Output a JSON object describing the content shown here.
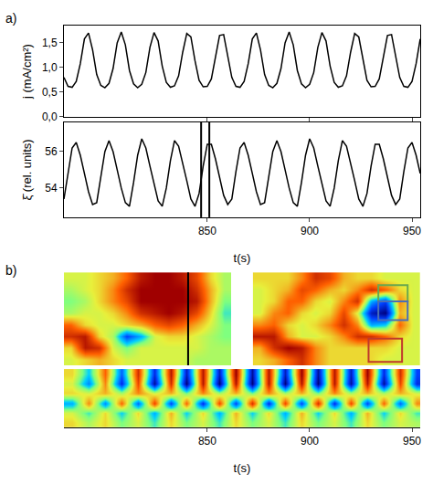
{
  "chart_data": [
    {
      "type": "line",
      "panel_label": "a)",
      "ylabel": "j (mA/cm²)",
      "color": "#000000",
      "tick_labels": "y",
      "x": [
        780,
        782,
        784,
        786,
        788,
        790,
        792,
        794,
        796,
        798,
        800,
        802,
        804,
        806,
        808,
        810,
        812,
        814,
        816,
        818,
        820,
        822,
        824,
        826,
        828,
        830,
        832,
        834,
        836,
        838,
        840,
        842,
        844,
        846,
        848,
        850,
        852,
        854,
        856,
        858,
        860,
        862,
        864,
        866,
        868,
        870,
        872,
        874,
        876,
        878,
        880,
        882,
        884,
        886,
        888,
        890,
        892,
        894,
        896,
        898,
        900,
        902,
        904,
        906,
        908,
        910,
        912,
        914,
        916,
        918,
        920,
        922,
        924,
        926,
        928,
        930,
        932,
        934,
        936,
        938,
        940,
        942,
        944,
        946,
        948,
        950,
        952,
        954
      ],
      "values": [
        0.8,
        0.62,
        0.6,
        0.72,
        1.08,
        1.58,
        1.7,
        1.36,
        0.86,
        0.64,
        0.59,
        0.68,
        0.98,
        1.5,
        1.72,
        1.46,
        0.94,
        0.67,
        0.59,
        0.66,
        0.9,
        1.41,
        1.71,
        1.54,
        1.03,
        0.7,
        0.6,
        0.63,
        0.83,
        1.31,
        1.69,
        1.62,
        1.14,
        0.74,
        0.61,
        0.62,
        0.77,
        1.19,
        1.65,
        1.67,
        1.25,
        0.8,
        0.62,
        0.6,
        0.72,
        1.08,
        1.58,
        1.7,
        1.36,
        0.86,
        0.64,
        0.59,
        0.68,
        0.98,
        1.5,
        1.72,
        1.46,
        0.94,
        0.67,
        0.59,
        0.66,
        0.9,
        1.41,
        1.71,
        1.54,
        1.03,
        0.7,
        0.6,
        0.63,
        0.83,
        1.31,
        1.69,
        1.62,
        1.14,
        0.74,
        0.61,
        0.62,
        0.77,
        1.19,
        1.65,
        1.67,
        1.25,
        0.8,
        0.62,
        0.6,
        0.72,
        1.08,
        1.58
      ],
      "xlim": [
        780,
        954
      ],
      "xticks": [
        850,
        900,
        950
      ],
      "ylim": [
        0,
        1.85
      ],
      "yticks": [
        {
          "value": 0,
          "label": "0,0"
        },
        {
          "value": 0.5,
          "label": "0,5"
        },
        {
          "value": 1,
          "label": "1,0"
        },
        {
          "value": 1.5,
          "label": "1,5"
        }
      ]
    },
    {
      "type": "line",
      "xlabel": "t(s)",
      "ylabel": "ξ̄ (rel. units)",
      "color": "#000000",
      "x": [
        780,
        782,
        784,
        786,
        788,
        790,
        792,
        794,
        796,
        798,
        800,
        802,
        804,
        806,
        808,
        810,
        812,
        814,
        816,
        818,
        820,
        822,
        824,
        826,
        828,
        830,
        832,
        834,
        836,
        838,
        840,
        842,
        844,
        846,
        848,
        850,
        852,
        854,
        856,
        858,
        860,
        862,
        864,
        866,
        868,
        870,
        872,
        874,
        876,
        878,
        880,
        882,
        884,
        886,
        888,
        890,
        892,
        894,
        896,
        898,
        900,
        902,
        904,
        906,
        908,
        910,
        912,
        914,
        916,
        918,
        920,
        922,
        924,
        926,
        928,
        930,
        932,
        934,
        936,
        938,
        940,
        942,
        944,
        946,
        948,
        950,
        952,
        954
      ],
      "values": [
        53.4,
        54.9,
        56.2,
        56.5,
        55.8,
        54.8,
        53.8,
        53.1,
        53.2,
        54.6,
        56.0,
        56.6,
        56.0,
        55.0,
        54.0,
        53.2,
        53.0,
        54.3,
        55.8,
        56.7,
        56.2,
        55.2,
        54.2,
        53.3,
        53.0,
        54.0,
        55.5,
        56.6,
        56.3,
        55.4,
        54.4,
        53.4,
        53.0,
        53.7,
        55.2,
        56.4,
        56.4,
        55.6,
        54.6,
        53.6,
        53.1,
        53.4,
        54.9,
        56.2,
        56.5,
        55.8,
        54.8,
        53.8,
        53.1,
        53.2,
        54.6,
        56.0,
        56.6,
        56.0,
        55.0,
        54.0,
        53.2,
        53.0,
        54.3,
        55.8,
        56.7,
        56.2,
        55.2,
        54.2,
        53.3,
        53.0,
        54.0,
        55.5,
        56.6,
        56.3,
        55.4,
        54.4,
        53.4,
        53.0,
        53.7,
        55.2,
        56.4,
        56.4,
        55.6,
        54.6,
        53.6,
        53.1,
        53.4,
        54.9,
        56.2,
        56.5,
        55.8,
        54.8
      ],
      "xlim": [
        780,
        954
      ],
      "xticks": [
        850,
        900,
        950
      ],
      "ylim": [
        52.4,
        57.6
      ],
      "yticks": [
        54,
        56
      ],
      "vlines": [
        847,
        851
      ]
    },
    {
      "type": "heatmap",
      "panel_label": "b)",
      "tick_labels": false,
      "zlim": [
        -1,
        1
      ],
      "cells": [
        [
          0.2,
          0.2,
          0.3,
          0.4,
          0.6,
          0.9,
          1.0,
          1.0,
          0.9,
          0.7,
          0.3,
          0.1
        ],
        [
          0.1,
          0.2,
          0.3,
          0.5,
          0.8,
          1.0,
          1.0,
          1.0,
          1.0,
          0.8,
          0.4,
          0.1
        ],
        [
          0.0,
          0.1,
          0.3,
          0.5,
          0.7,
          1.0,
          1.0,
          1.0,
          1.0,
          0.9,
          0.4,
          0.0
        ],
        [
          0.1,
          0.2,
          0.2,
          0.3,
          0.5,
          0.8,
          0.9,
          1.0,
          0.9,
          0.7,
          0.3,
          -0.1
        ],
        [
          0.6,
          0.3,
          0.2,
          0.2,
          0.3,
          0.4,
          0.6,
          0.7,
          0.6,
          0.4,
          0.2,
          0.0
        ],
        [
          0.8,
          0.9,
          0.3,
          0.1,
          -0.6,
          -0.3,
          0.2,
          0.3,
          0.3,
          0.2,
          0.1,
          0.0
        ],
        [
          0.3,
          0.9,
          0.8,
          0.2,
          0.0,
          0.2,
          0.2,
          0.2,
          0.2,
          0.2,
          0.1,
          0.1
        ],
        [
          0.2,
          0.3,
          0.4,
          0.3,
          0.2,
          0.2,
          0.2,
          0.2,
          0.2,
          0.1,
          0.1,
          0.1
        ]
      ],
      "vlines": [
        8.4
      ]
    },
    {
      "type": "heatmap",
      "tick_labels": false,
      "zlim": [
        -1,
        1
      ],
      "cells": [
        [
          0.3,
          0.3,
          0.3,
          0.5,
          0.8,
          0.7,
          0.4,
          0.3,
          0.3,
          0.2,
          0.2,
          0.2
        ],
        [
          0.2,
          0.3,
          0.4,
          0.7,
          0.6,
          0.4,
          0.3,
          0.5,
          0.8,
          0.6,
          0.3,
          0.2
        ],
        [
          0.2,
          0.3,
          0.6,
          0.6,
          0.3,
          0.2,
          0.5,
          0.8,
          -0.3,
          -0.6,
          0.5,
          0.2
        ],
        [
          0.2,
          0.5,
          0.6,
          0.3,
          0.2,
          0.3,
          0.7,
          0.2,
          -0.8,
          -1.0,
          0.4,
          0.2
        ],
        [
          0.5,
          0.6,
          0.3,
          0.2,
          0.3,
          0.5,
          0.8,
          0.5,
          -0.3,
          -0.2,
          0.6,
          0.2
        ],
        [
          0.9,
          0.9,
          0.4,
          0.2,
          0.2,
          0.3,
          0.5,
          0.8,
          0.8,
          0.6,
          0.3,
          0.2
        ],
        [
          0.4,
          0.8,
          1.0,
          0.9,
          0.5,
          0.3,
          0.3,
          0.3,
          0.3,
          0.3,
          0.2,
          0.2
        ],
        [
          0.3,
          0.4,
          0.6,
          0.8,
          0.5,
          0.3,
          0.3,
          0.3,
          0.3,
          0.2,
          0.2,
          0.2
        ]
      ],
      "boxes": [
        {
          "x": [
            8.5,
            10.6
          ],
          "y": [
            0.6,
            2.0
          ],
          "color": "#6aa84f"
        },
        {
          "x": [
            8.5,
            10.6
          ],
          "y": [
            2.0,
            3.6
          ],
          "color": "#4a6fb5"
        },
        {
          "x": [
            7.8,
            10.2
          ],
          "y": [
            5.2,
            7.2
          ],
          "color": "#c0392b"
        }
      ]
    },
    {
      "type": "heatmap",
      "xlabel": "t(s)",
      "tick_labels": "x",
      "zlim": [
        -1,
        1
      ],
      "x": [
        784,
        792,
        800,
        808,
        816,
        824,
        832,
        840,
        848,
        856,
        864,
        872,
        880,
        888,
        896,
        904,
        912,
        920,
        928,
        936,
        944,
        952
      ],
      "cells": [
        [
          0.3,
          -0.2,
          0.6,
          -0.5,
          0.8,
          -0.7,
          0.9,
          -0.8,
          0.9,
          -0.8,
          1.0,
          -0.9,
          0.9,
          -0.8,
          1.0,
          -0.9,
          0.9,
          -0.8,
          1.0,
          -0.7,
          0.8,
          -0.6
        ],
        [
          0.2,
          -0.4,
          0.5,
          -0.7,
          0.7,
          -0.9,
          0.8,
          -1.0,
          0.9,
          -1.0,
          0.9,
          -1.0,
          0.9,
          -1.0,
          0.9,
          -1.0,
          0.9,
          -0.9,
          0.9,
          -0.9,
          0.7,
          -0.7
        ],
        [
          0.3,
          0.2,
          0.4,
          0.1,
          0.5,
          0.2,
          0.4,
          0.0,
          0.5,
          0.1,
          0.4,
          0.0,
          0.5,
          0.1,
          0.4,
          0.0,
          0.5,
          0.1,
          0.4,
          0.1,
          0.4,
          0.2
        ],
        [
          -0.3,
          0.5,
          -0.4,
          0.6,
          -0.5,
          0.7,
          -0.6,
          0.6,
          -0.7,
          0.7,
          -0.6,
          0.8,
          -0.7,
          0.7,
          -0.6,
          0.8,
          -0.7,
          0.7,
          -0.6,
          0.6,
          -0.5,
          0.5
        ],
        [
          0.2,
          -0.1,
          0.3,
          -0.2,
          0.3,
          -0.3,
          0.4,
          -0.2,
          0.3,
          -0.3,
          0.4,
          -0.2,
          0.3,
          -0.3,
          0.4,
          -0.2,
          0.3,
          -0.3,
          0.4,
          -0.2,
          0.3,
          -0.1
        ],
        [
          0.3,
          0.1,
          0.3,
          0.0,
          0.2,
          -0.1,
          0.3,
          0.0,
          0.2,
          -0.1,
          0.3,
          0.0,
          0.2,
          -0.1,
          0.3,
          0.0,
          0.2,
          -0.1,
          0.3,
          0.0,
          0.2,
          0.1
        ]
      ],
      "xlim": [
        780,
        954
      ],
      "xticks": [
        850,
        900,
        950
      ]
    }
  ]
}
